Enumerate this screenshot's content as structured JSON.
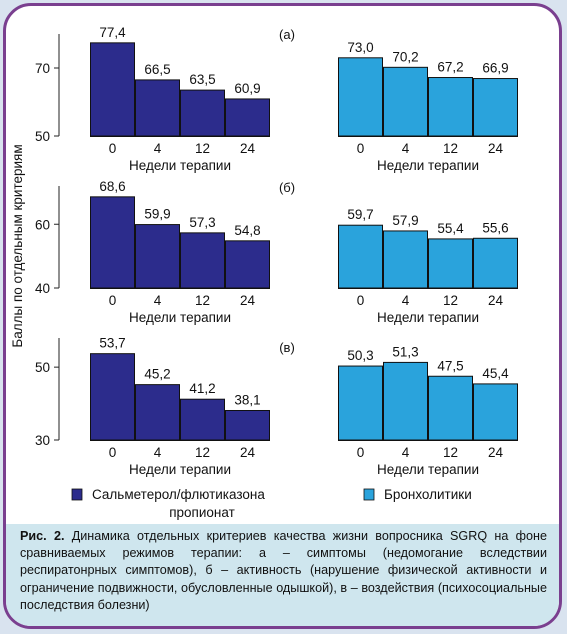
{
  "chart_data": {
    "type": "bar",
    "ylabel": "Баллы по отдельным критериям",
    "xlabel": "Недели терапии",
    "categories": [
      "0",
      "4",
      "12",
      "24"
    ],
    "series_names": [
      "Сальметерол/флютиказона пропионат",
      "Бронхолитики"
    ],
    "colors": {
      "salmeterol": "#2c2c8c",
      "bronch": "#2aa3dc"
    },
    "panels": [
      {
        "label": "(а)",
        "ylim": [
          50,
          80
        ],
        "yticks": [
          "70",
          "50"
        ],
        "salmeterol": [
          77.4,
          66.5,
          63.5,
          60.9
        ],
        "salmeterol_labels": [
          "77,4",
          "66,5",
          "63,5",
          "60,9"
        ],
        "bronch": [
          73.0,
          70.2,
          67.2,
          66.9
        ],
        "bronch_labels": [
          "73,0",
          "70,2",
          "67,2",
          "66,9"
        ]
      },
      {
        "label": "(б)",
        "ylim": [
          40,
          72
        ],
        "yticks": [
          "60",
          "40"
        ],
        "salmeterol": [
          68.6,
          59.9,
          57.3,
          54.8
        ],
        "salmeterol_labels": [
          "68,6",
          "59,9",
          "57,3",
          "54,8"
        ],
        "bronch": [
          59.7,
          57.9,
          55.4,
          55.6
        ],
        "bronch_labels": [
          "59,7",
          "57,9",
          "55,4",
          "55,6"
        ]
      },
      {
        "label": "(в)",
        "ylim": [
          30,
          58
        ],
        "yticks": [
          "50",
          "30"
        ],
        "salmeterol": [
          53.7,
          45.2,
          41.2,
          38.1
        ],
        "salmeterol_labels": [
          "53,7",
          "45,2",
          "41,2",
          "38,1"
        ],
        "bronch": [
          50.3,
          51.3,
          47.5,
          45.4
        ],
        "bronch_labels": [
          "50,3",
          "51,3",
          "47,5",
          "45,4"
        ]
      }
    ],
    "legend": {
      "salmeterol_line1": "Сальметерол/флютиказона",
      "salmeterol_line2": "пропионат",
      "bronch": "Бронхолитики"
    }
  },
  "caption": {
    "prefix": "Рис. 2.",
    "text": " Динамика отдельных критериев качества жизни вопросника SGRQ на фоне сравниваемых режимов терапии: а – симптомы (недомогание вследствии респиратонрных симптомов), б – активность (нарушение физической активности и ограничение подвижности, обусловленные одышкой), в – воздействия (психосоциальные последствия болезни)"
  }
}
